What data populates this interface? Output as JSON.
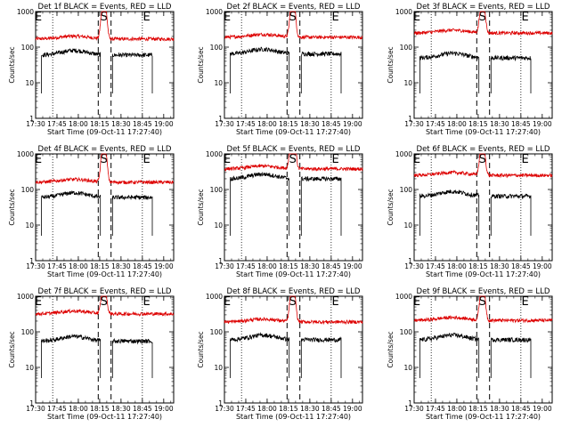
{
  "chart_data": {
    "type": "line",
    "scale": "log",
    "ylim": [
      1,
      1000
    ],
    "xlim": [
      "17:30",
      "19:07"
    ],
    "ytick_labels": [
      "1",
      "10",
      "100",
      "1000"
    ],
    "xtick_labels": [
      "17:30",
      "17:45",
      "18:00",
      "18:15",
      "18:30",
      "18:45",
      "19:00"
    ],
    "xlabel": "Start Time (09-Oct-11 17:27:40)",
    "ylabel": "Counts/sec",
    "series_colors": {
      "events": "#000000",
      "lld": "#dd0000"
    },
    "markers": {
      "start_E": {
        "label": "E",
        "time": "17:30"
      },
      "mid_S": {
        "label": "S",
        "time": "18:18"
      },
      "end_E": {
        "label": "E",
        "time": "18:48"
      },
      "dotted_lines": [
        "17:42",
        "18:45"
      ],
      "dashed_lines": [
        "18:14",
        "18:23"
      ]
    },
    "panels": [
      {
        "title": "Det 1f BLACK = Events, RED = LLD",
        "events_level": 60,
        "lld_level": 170,
        "flare_peak": 2000
      },
      {
        "title": "Det 2f BLACK = Events, RED = LLD",
        "events_level": 65,
        "lld_level": 190,
        "flare_peak": 2000
      },
      {
        "title": "Det 3f BLACK = Events, RED = LLD",
        "events_level": 50,
        "lld_level": 250,
        "flare_peak": 2000
      },
      {
        "title": "Det 4f BLACK = Events, RED = LLD",
        "events_level": 60,
        "lld_level": 160,
        "flare_peak": 2000
      },
      {
        "title": "Det 5f BLACK = Events, RED = LLD",
        "events_level": 200,
        "lld_level": 380,
        "flare_peak": 4500
      },
      {
        "title": "Det 6f BLACK = Events, RED = LLD",
        "events_level": 65,
        "lld_level": 250,
        "flare_peak": 2000
      },
      {
        "title": "Det 7f BLACK = Events, RED = LLD",
        "events_level": 55,
        "lld_level": 320,
        "flare_peak": 2000
      },
      {
        "title": "Det 8f BLACK = Events, RED = LLD",
        "events_level": 60,
        "lld_level": 190,
        "flare_peak": 2000
      },
      {
        "title": "Det 9f BLACK = Events, RED = LLD",
        "events_level": 60,
        "lld_level": 210,
        "flare_peak": 2000
      }
    ]
  }
}
